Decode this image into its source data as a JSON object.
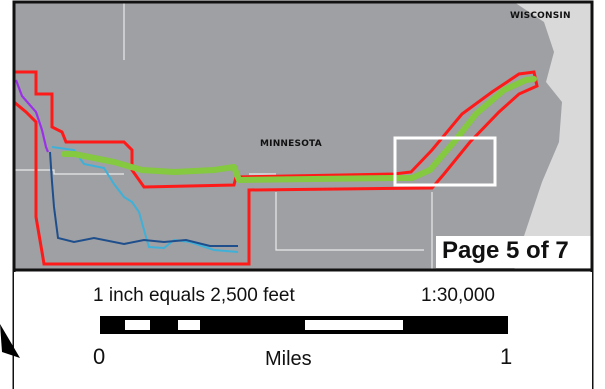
{
  "map": {
    "state_labels": {
      "wisconsin": "WISCONSIN",
      "minnesota": "MINNESOTA"
    },
    "page_indicator": "Page 5 of 7",
    "colors": {
      "land": "#9ea0a3",
      "water": "#d9d9d9",
      "county_lines": "#e9e9e9",
      "buffer": "#ff1a1a",
      "route_primary": "#84c93f",
      "route_alt_purple": "#9b30e8",
      "route_alt_cyan": "#3fb0d8",
      "route_alt_navy": "#1f4e8c",
      "extent_box": "#ffffff"
    }
  },
  "legend": {
    "scale_text": "1 inch equals 2,500 feet",
    "ratio_text": "1:30,000",
    "scale_bar": {
      "tick_start": "0",
      "tick_end": "1",
      "units": "Miles"
    }
  },
  "icons": {
    "north_arrow": "north-arrow-icon"
  }
}
